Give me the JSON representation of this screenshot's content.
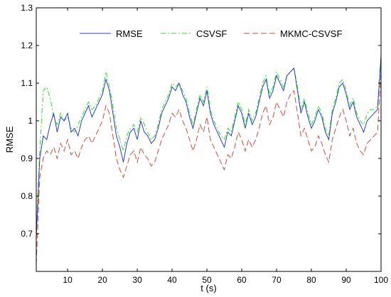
{
  "chart_data": {
    "type": "line",
    "xlabel": "t (s)",
    "ylabel": "RMSE",
    "xlim": [
      1,
      100
    ],
    "ylim": [
      0.6,
      1.3
    ],
    "xticks": [
      10,
      20,
      30,
      40,
      50,
      60,
      70,
      80,
      90,
      100
    ],
    "yticks": [
      0.7,
      0.8,
      0.9,
      1,
      1.1,
      1.2,
      1.3
    ],
    "legend_position": "top-right",
    "grid": false,
    "x": [
      1,
      2,
      3,
      4,
      5,
      6,
      7,
      8,
      9,
      10,
      11,
      12,
      13,
      14,
      15,
      16,
      17,
      18,
      19,
      20,
      21,
      22,
      23,
      24,
      25,
      26,
      27,
      28,
      29,
      30,
      31,
      32,
      33,
      34,
      35,
      36,
      37,
      38,
      39,
      40,
      41,
      42,
      43,
      44,
      45,
      46,
      47,
      48,
      49,
      50,
      51,
      52,
      53,
      54,
      55,
      56,
      57,
      58,
      59,
      60,
      61,
      62,
      63,
      64,
      65,
      66,
      67,
      68,
      69,
      70,
      71,
      72,
      73,
      74,
      75,
      76,
      77,
      78,
      79,
      80,
      81,
      82,
      83,
      84,
      85,
      86,
      87,
      88,
      89,
      90,
      91,
      92,
      93,
      94,
      95,
      96,
      97,
      98,
      99,
      100
    ],
    "series": [
      {
        "name": "RMSE",
        "color": "#2b3fc4",
        "dash": "solid",
        "values": [
          0.69,
          0.9,
          0.96,
          0.95,
          0.99,
          1.02,
          0.97,
          1.01,
          1.0,
          1.02,
          0.97,
          0.98,
          0.96,
          1.0,
          1.02,
          1.04,
          1.01,
          1.03,
          1.05,
          1.07,
          1.11,
          1.08,
          1.02,
          0.96,
          0.93,
          0.89,
          0.94,
          0.97,
          0.98,
          0.95,
          1.0,
          0.97,
          0.96,
          0.94,
          0.95,
          0.98,
          1.02,
          1.04,
          1.06,
          1.09,
          1.08,
          1.1,
          1.07,
          1.05,
          1.01,
          0.98,
          1.02,
          1.06,
          1.04,
          1.08,
          1.02,
          0.99,
          0.97,
          0.95,
          0.93,
          0.97,
          0.96,
          1.0,
          1.04,
          1.02,
          0.98,
          1.02,
          0.99,
          1.01,
          1.05,
          1.09,
          1.11,
          1.06,
          1.08,
          1.12,
          1.1,
          1.08,
          1.12,
          1.13,
          1.14,
          1.08,
          1.02,
          1.05,
          1.01,
          0.98,
          1.0,
          1.03,
          1.01,
          0.97,
          0.95,
          1.02,
          1.05,
          1.09,
          1.1,
          1.07,
          1.03,
          1.05,
          1.01,
          0.99,
          0.97,
          1.0,
          1.01,
          1.02,
          1.03,
          1.17
        ]
      },
      {
        "name": "CSVSF",
        "color": "#33dd33",
        "dash": "dashdot",
        "values": [
          0.71,
          0.92,
          1.08,
          1.09,
          1.06,
          1.01,
          0.99,
          1.02,
          1.0,
          1.01,
          0.98,
          0.97,
          0.99,
          1.01,
          1.03,
          1.05,
          1.03,
          1.04,
          1.06,
          1.08,
          1.13,
          1.09,
          1.04,
          0.98,
          0.95,
          0.92,
          0.96,
          0.98,
          0.99,
          0.97,
          1.01,
          0.99,
          0.97,
          0.95,
          0.96,
          0.99,
          1.03,
          1.05,
          1.07,
          1.1,
          1.09,
          1.1,
          1.08,
          1.06,
          1.02,
          0.99,
          1.03,
          1.07,
          1.05,
          1.09,
          1.03,
          1.0,
          0.98,
          0.96,
          0.95,
          0.98,
          0.97,
          1.01,
          1.05,
          1.03,
          0.99,
          1.03,
          1.0,
          1.02,
          1.06,
          1.1,
          1.12,
          1.07,
          1.09,
          1.13,
          1.11,
          1.09,
          1.12,
          1.13,
          1.14,
          1.09,
          1.03,
          1.06,
          1.02,
          0.99,
          1.01,
          1.04,
          1.02,
          0.98,
          0.96,
          1.03,
          1.06,
          1.1,
          1.11,
          1.08,
          1.04,
          1.06,
          1.02,
          1.0,
          0.99,
          1.02,
          1.03,
          1.03,
          1.04,
          1.18
        ]
      },
      {
        "name": "MKMC-CSVSF",
        "color": "#d24a3c",
        "dash": "dashed",
        "values": [
          0.62,
          0.85,
          0.9,
          0.92,
          0.91,
          0.93,
          0.9,
          0.94,
          0.92,
          0.95,
          0.91,
          0.92,
          0.9,
          0.93,
          0.95,
          0.96,
          0.94,
          0.96,
          0.98,
          1.0,
          1.04,
          1.02,
          0.96,
          0.9,
          0.87,
          0.85,
          0.88,
          0.91,
          0.92,
          0.89,
          0.93,
          0.91,
          0.9,
          0.88,
          0.89,
          0.92,
          0.95,
          0.97,
          0.99,
          1.02,
          1.01,
          1.03,
          1.0,
          0.98,
          0.95,
          0.92,
          0.95,
          0.99,
          0.97,
          1.01,
          0.95,
          0.93,
          0.91,
          0.89,
          0.87,
          0.91,
          0.9,
          0.93,
          0.97,
          0.95,
          0.92,
          0.95,
          0.93,
          0.95,
          0.98,
          1.02,
          1.04,
          0.99,
          1.01,
          1.05,
          1.03,
          1.01,
          1.05,
          1.07,
          1.08,
          1.02,
          0.96,
          0.98,
          0.95,
          0.92,
          0.93,
          0.96,
          0.94,
          0.91,
          0.89,
          0.95,
          0.98,
          1.01,
          1.03,
          1.0,
          0.96,
          0.98,
          0.94,
          0.92,
          0.91,
          0.94,
          0.95,
          0.96,
          0.97,
          1.13
        ]
      }
    ]
  }
}
